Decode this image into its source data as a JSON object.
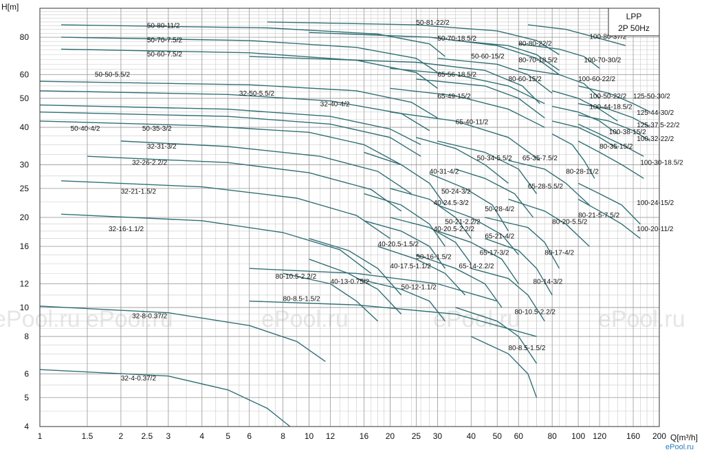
{
  "chart_data": {
    "type": "line",
    "title": "LPP",
    "subtitle": "2P 50Hz",
    "xlabel": "Q[m³/h]",
    "ylabel": "H[m]",
    "xscale": "log",
    "yscale": "log",
    "xlim": [
      1,
      200
    ],
    "ylim": [
      4,
      100
    ],
    "x_ticks": [
      "1",
      "1.5",
      "2",
      "2.5",
      "3",
      "4",
      "5",
      "6",
      "8",
      "10",
      "12",
      "16",
      "20",
      "25",
      "30",
      "40",
      "50",
      "60",
      "80",
      "100",
      "120",
      "160",
      "200"
    ],
    "y_ticks": [
      "4",
      "5",
      "6",
      "8",
      "10",
      "12",
      "16",
      "20",
      "25",
      "30",
      "40",
      "50",
      "60",
      "80"
    ],
    "watermark": "ePool.ru",
    "logo": "ePool.ru",
    "series": [
      {
        "name": "32-4-0.37/2",
        "x": [
          1,
          3,
          5,
          7,
          8.5
        ],
        "y": [
          6.2,
          5.9,
          5.3,
          4.6,
          4
        ]
      },
      {
        "name": "32-8-0.37/2",
        "x": [
          1,
          3,
          6,
          9,
          11.5
        ],
        "y": [
          10.1,
          9.6,
          8.7,
          7.7,
          6.6
        ]
      },
      {
        "name": "32-16-1.1/2",
        "x": [
          1.2,
          4,
          8,
          13,
          17
        ],
        "y": [
          20.5,
          19.5,
          17.8,
          15.6,
          13
        ]
      },
      {
        "name": "32-21-1.5/2",
        "x": [
          1.2,
          4,
          9,
          15,
          20
        ],
        "y": [
          26.5,
          25.3,
          23.2,
          20.3,
          17
        ]
      },
      {
        "name": "32-26-2.2/2",
        "x": [
          1.5,
          5,
          10,
          17,
          22
        ],
        "y": [
          32,
          30.5,
          28.2,
          24.8,
          21
        ]
      },
      {
        "name": "32-31-3/2",
        "x": [
          2,
          5,
          11,
          18,
          24
        ],
        "y": [
          36,
          34.5,
          32,
          28.5,
          24
        ]
      },
      {
        "name": "50-35-3/2",
        "x": [
          1,
          4,
          10,
          16,
          22
        ],
        "y": [
          42,
          40.5,
          38.5,
          35,
          30
        ]
      },
      {
        "name": "50-40-4/2",
        "x": [
          1,
          5,
          12,
          20,
          26
        ],
        "y": [
          45,
          43.5,
          41,
          37,
          32
        ]
      },
      {
        "name": "32-40-4/2",
        "x": [
          1,
          5,
          12,
          20,
          26
        ],
        "y": [
          47.5,
          46,
          43.5,
          39.5,
          35
        ]
      },
      {
        "name": "32-50-5.5/2",
        "x": [
          1,
          5,
          12,
          22,
          28
        ],
        "y": [
          53,
          51.5,
          49,
          44.5,
          39
        ]
      },
      {
        "name": "50-50-5.5/2",
        "x": [
          1,
          6,
          15,
          24,
          30
        ],
        "y": [
          57,
          55.5,
          53,
          48.5,
          43
        ]
      },
      {
        "name": "50-60-7.5/2",
        "x": [
          1.2,
          6,
          15,
          25,
          30
        ],
        "y": [
          73,
          71,
          67,
          61,
          54
        ]
      },
      {
        "name": "50-70-7.5/2",
        "x": [
          1.2,
          6,
          15,
          25,
          30
        ],
        "y": [
          80,
          78,
          74,
          68,
          61
        ]
      },
      {
        "name": "50-80-11/2",
        "x": [
          1.2,
          7,
          18,
          28,
          32
        ],
        "y": [
          88,
          86,
          82,
          76,
          69
        ]
      },
      {
        "name": "50-81-22/2",
        "x": [
          7,
          25,
          50,
          70,
          85
        ],
        "y": [
          90,
          88,
          84,
          78,
          70
        ]
      },
      {
        "name": "50-70-18.5/2",
        "x": [
          10,
          28,
          50,
          70,
          85
        ],
        "y": [
          83,
          80,
          75,
          68,
          60
        ]
      },
      {
        "name": "50-60-15/2",
        "x": [
          6,
          25,
          45,
          62,
          72
        ],
        "y": [
          69,
          66,
          62,
          55,
          48
        ]
      },
      {
        "name": "65-56-18.5/2",
        "x": [
          20,
          35,
          55,
          75
        ],
        "y": [
          63,
          60,
          55,
          48
        ]
      },
      {
        "name": "65-49-15/2",
        "x": [
          20,
          35,
          55,
          75
        ],
        "y": [
          54,
          51,
          46,
          40
        ]
      },
      {
        "name": "65-40-11/2",
        "x": [
          20,
          35,
          55,
          72
        ],
        "y": [
          45,
          42,
          37,
          31
        ]
      },
      {
        "name": "50-34-5.5/2",
        "x": [
          25,
          35,
          45,
          55
        ],
        "y": [
          37,
          34,
          30,
          26
        ]
      },
      {
        "name": "65-35-7.5/2",
        "x": [
          30,
          45,
          60,
          70
        ],
        "y": [
          36,
          33,
          29,
          24
        ]
      },
      {
        "name": "40-31-4/2",
        "x": [
          16,
          22,
          28,
          32
        ],
        "y": [
          33,
          30,
          26,
          22
        ]
      },
      {
        "name": "65-28-5.5/2",
        "x": [
          35,
          45,
          58,
          68
        ],
        "y": [
          29,
          27,
          24,
          20
        ]
      },
      {
        "name": "50-24-3/2",
        "x": [
          20,
          28,
          35,
          40
        ],
        "y": [
          25,
          23,
          20,
          17
        ]
      },
      {
        "name": "40-24.5-3/2",
        "x": [
          16,
          22,
          28,
          32
        ],
        "y": [
          24,
          22,
          19,
          16
        ]
      },
      {
        "name": "50-28-4/2",
        "x": [
          28,
          38,
          48,
          55
        ],
        "y": [
          28,
          25,
          22,
          18
        ]
      },
      {
        "name": "50-21-2.2/2",
        "x": [
          20,
          28,
          35,
          40
        ],
        "y": [
          20,
          18.5,
          16.5,
          14
        ]
      },
      {
        "name": "40-20.5-2.2/2",
        "x": [
          16,
          22,
          28,
          32
        ],
        "y": [
          19.5,
          18,
          16,
          13.5
        ]
      },
      {
        "name": "65-21-4/2",
        "x": [
          30,
          40,
          52,
          60
        ],
        "y": [
          22,
          20,
          17.5,
          15
        ]
      },
      {
        "name": "65-17-3/2",
        "x": [
          30,
          40,
          52,
          60
        ],
        "y": [
          18,
          16.5,
          14.5,
          12
        ]
      },
      {
        "name": "40-20.5-1.5/2",
        "x": [
          10,
          14,
          18,
          22
        ],
        "y": [
          17,
          15.5,
          13.5,
          11
        ]
      },
      {
        "name": "50-16-1.5/2",
        "x": [
          18,
          25,
          32,
          38
        ],
        "y": [
          16,
          14.5,
          13,
          11
        ]
      },
      {
        "name": "65-14-2.2/2",
        "x": [
          25,
          35,
          45,
          52
        ],
        "y": [
          15,
          13.5,
          12,
          10
        ]
      },
      {
        "name": "40-17.5-1.1/2",
        "x": [
          10,
          14,
          18,
          22
        ],
        "y": [
          14.5,
          13,
          11.5,
          9.5
        ]
      },
      {
        "name": "40-13-0.75/2",
        "x": [
          8,
          12,
          15,
          18
        ],
        "y": [
          13,
          12,
          10.5,
          9
        ]
      },
      {
        "name": "80-10.5-2.2/2",
        "x": [
          6,
          15,
          30,
          50
        ],
        "y": [
          13.5,
          13,
          12,
          10.5
        ]
      },
      {
        "name": "50-12-1.1/2",
        "x": [
          15,
          22,
          28,
          32
        ],
        "y": [
          12.5,
          11.5,
          10.5,
          9
        ]
      },
      {
        "name": "80-8.5-1.5/2",
        "x": [
          6,
          15,
          35,
          70
        ],
        "y": [
          10.5,
          10.2,
          9.5,
          8
        ]
      },
      {
        "name": "80-10.5-2.2/2",
        "x": [
          35,
          50,
          60,
          70
        ],
        "y": [
          10,
          9,
          8,
          6.5
        ]
      },
      {
        "name": "80-8.5-1.5/2",
        "x": [
          40,
          55,
          65,
          70
        ],
        "y": [
          8,
          7,
          6,
          5
        ]
      },
      {
        "name": "80-14-3/2",
        "x": [
          40,
          55,
          65,
          75
        ],
        "y": [
          13.5,
          12.5,
          11,
          9
        ]
      },
      {
        "name": "80-17-4/2",
        "x": [
          45,
          60,
          70,
          80
        ],
        "y": [
          17,
          15.5,
          13.5,
          11
        ]
      },
      {
        "name": "80-20-5.5/2",
        "x": [
          45,
          65,
          75,
          85
        ],
        "y": [
          20,
          18.5,
          16.5,
          13.5
        ]
      },
      {
        "name": "80-21-5-7.5/2",
        "x": [
          55,
          75,
          90,
          110
        ],
        "y": [
          23,
          21,
          19,
          16
        ]
      },
      {
        "name": "80-28-11/2",
        "x": [
          55,
          75,
          90,
          110
        ],
        "y": [
          31,
          29,
          26,
          22
        ]
      },
      {
        "name": "80-35-15/2",
        "x": [
          80,
          95,
          105,
          115
        ],
        "y": [
          38,
          35,
          31,
          27
        ]
      },
      {
        "name": "80-60-15/2",
        "x": [
          25,
          45,
          60,
          75
        ],
        "y": [
          58,
          55,
          50,
          43
        ]
      },
      {
        "name": "80-70-18.5/2",
        "x": [
          30,
          50,
          65,
          80
        ],
        "y": [
          68,
          65,
          60,
          52
        ]
      },
      {
        "name": "80-80-22/2",
        "x": [
          35,
          55,
          70,
          85
        ],
        "y": [
          78,
          75,
          70,
          62
        ]
      },
      {
        "name": "100-80-37/2",
        "x": [
          65,
          90,
          110,
          150
        ],
        "y": [
          88,
          85,
          81,
          75
        ]
      },
      {
        "name": "100-70-30/2",
        "x": [
          60,
          85,
          105,
          120
        ],
        "y": [
          76,
          73,
          69,
          63
        ]
      },
      {
        "name": "100-60-22/2",
        "x": [
          60,
          85,
          105,
          120
        ],
        "y": [
          63,
          60,
          56,
          50
        ]
      },
      {
        "name": "100-50-22/2",
        "x": [
          80,
          100,
          120,
          140
        ],
        "y": [
          53,
          50,
          46,
          42
        ]
      },
      {
        "name": "100-44-18.5/2",
        "x": [
          80,
          100,
          120,
          140
        ],
        "y": [
          47,
          45,
          42,
          38
        ]
      },
      {
        "name": "100-38-15/2",
        "x": [
          80,
          100,
          120,
          140
        ],
        "y": [
          42,
          40,
          37,
          34
        ]
      },
      {
        "name": "100-32-22/2",
        "x": [
          100,
          120,
          145,
          175
        ],
        "y": [
          41,
          38,
          35,
          32
        ]
      },
      {
        "name": "100-30-18.5/2",
        "x": [
          100,
          120,
          145,
          175
        ],
        "y": [
          36,
          33,
          30,
          27
        ]
      },
      {
        "name": "100-24-15/2",
        "x": [
          100,
          120,
          145,
          170
        ],
        "y": [
          26,
          24,
          22,
          19
        ]
      },
      {
        "name": "100-20-11/2",
        "x": [
          100,
          120,
          145,
          170
        ],
        "y": [
          23,
          21,
          19,
          17
        ]
      },
      {
        "name": "125-50-30/2",
        "x": [
          100,
          130,
          160,
          185
        ],
        "y": [
          55,
          52,
          48,
          45
        ]
      },
      {
        "name": "125-44-30/2",
        "x": [
          100,
          130,
          160,
          185
        ],
        "y": [
          48,
          46,
          43,
          40
        ]
      },
      {
        "name": "125-37.5-22/2",
        "x": [
          100,
          130,
          160,
          185
        ],
        "y": [
          44,
          42,
          39,
          36
        ]
      }
    ],
    "labels": [
      {
        "text": "50-81-22/2",
        "x": 25,
        "y": 88
      },
      {
        "text": "50-80-11/2",
        "x": 2.5,
        "y": 86
      },
      {
        "text": "50-70-7.5/2",
        "x": 2.5,
        "y": 77
      },
      {
        "text": "50-70-18.5/2",
        "x": 30,
        "y": 78
      },
      {
        "text": "50-60-7.5/2",
        "x": 2.5,
        "y": 69
      },
      {
        "text": "80-80-22/2",
        "x": 60,
        "y": 75
      },
      {
        "text": "100-80-37/2",
        "x": 110,
        "y": 79
      },
      {
        "text": "50-60-15/2",
        "x": 40,
        "y": 68
      },
      {
        "text": "80-70-18.5/2",
        "x": 60,
        "y": 66
      },
      {
        "text": "100-70-30/2",
        "x": 105,
        "y": 66
      },
      {
        "text": "50-50-5.5/2",
        "x": 1.6,
        "y": 59
      },
      {
        "text": "65-56-18.5/2",
        "x": 30,
        "y": 59
      },
      {
        "text": "80-60-15/2",
        "x": 55,
        "y": 57
      },
      {
        "text": "100-60-22/2",
        "x": 100,
        "y": 57
      },
      {
        "text": "32-50-5.5/2",
        "x": 5.5,
        "y": 51
      },
      {
        "text": "65-49-15/2",
        "x": 30,
        "y": 50
      },
      {
        "text": "100-50-22/2",
        "x": 110,
        "y": 50
      },
      {
        "text": "125-50-30/2",
        "x": 160,
        "y": 50
      },
      {
        "text": "32-40-4/2",
        "x": 11,
        "y": 47
      },
      {
        "text": "100-44-18.5/2",
        "x": 110,
        "y": 46
      },
      {
        "text": "125-44-30/2",
        "x": 165,
        "y": 44
      },
      {
        "text": "65-40-11/2",
        "x": 35,
        "y": 41
      },
      {
        "text": "125-37.5-22/2",
        "x": 165,
        "y": 40
      },
      {
        "text": "50-40-4/2",
        "x": 1.3,
        "y": 39
      },
      {
        "text": "50-35-3/2",
        "x": 2.4,
        "y": 39
      },
      {
        "text": "100-38-15/2",
        "x": 130,
        "y": 38
      },
      {
        "text": "100-32-22/2",
        "x": 165,
        "y": 36
      },
      {
        "text": "80-35-15/2",
        "x": 120,
        "y": 34
      },
      {
        "text": "32-31-3/2",
        "x": 2.5,
        "y": 34
      },
      {
        "text": "50-34-5.5/2",
        "x": 42,
        "y": 31
      },
      {
        "text": "100-30-18.5/2",
        "x": 170,
        "y": 30
      },
      {
        "text": "65-35-7.5/2",
        "x": 62,
        "y": 31
      },
      {
        "text": "32-26-2.2/2",
        "x": 2.2,
        "y": 30
      },
      {
        "text": "40-31-4/2",
        "x": 28,
        "y": 28
      },
      {
        "text": "80-28-11/2",
        "x": 90,
        "y": 28
      },
      {
        "text": "65-28-5.5/2",
        "x": 65,
        "y": 25
      },
      {
        "text": "32-21-1.5/2",
        "x": 2,
        "y": 24
      },
      {
        "text": "50-24-3/2",
        "x": 31,
        "y": 24
      },
      {
        "text": "40-24.5-3/2",
        "x": 29,
        "y": 22
      },
      {
        "text": "100-24-15/2",
        "x": 165,
        "y": 22
      },
      {
        "text": "50-28-4/2",
        "x": 45,
        "y": 21
      },
      {
        "text": "80-21-5-7.5/2",
        "x": 100,
        "y": 20
      },
      {
        "text": "50-21-2.2/2",
        "x": 32,
        "y": 19
      },
      {
        "text": "80-20-5.5/2",
        "x": 80,
        "y": 19
      },
      {
        "text": "40-20.5-2.2/2",
        "x": 29,
        "y": 18
      },
      {
        "text": "32-16-1.1/2",
        "x": 1.8,
        "y": 18
      },
      {
        "text": "65-21-4/2",
        "x": 45,
        "y": 17
      },
      {
        "text": "100-20-11/2",
        "x": 165,
        "y": 18
      },
      {
        "text": "40-20.5-1.5/2",
        "x": 18,
        "y": 16
      },
      {
        "text": "80-17-4/2",
        "x": 75,
        "y": 15
      },
      {
        "text": "65-17-3/2",
        "x": 43,
        "y": 15
      },
      {
        "text": "50-16-1.5/2",
        "x": 25,
        "y": 14.5
      },
      {
        "text": "40-17.5-1.1/2",
        "x": 20,
        "y": 13.5
      },
      {
        "text": "65-14-2.2/2",
        "x": 36,
        "y": 13.5
      },
      {
        "text": "80-10.5-2.2/2",
        "x": 7.5,
        "y": 12.5
      },
      {
        "text": "40-13-0.75/2",
        "x": 12,
        "y": 12
      },
      {
        "text": "80-14-3/2",
        "x": 68,
        "y": 12
      },
      {
        "text": "50-12-1.1/2",
        "x": 22,
        "y": 11.5
      },
      {
        "text": "80-8.5-1.5/2",
        "x": 8,
        "y": 10.5
      },
      {
        "text": "80-10.5-2.2/2",
        "x": 58,
        "y": 9.5
      },
      {
        "text": "32-8-0.37/2",
        "x": 2.2,
        "y": 9.2
      },
      {
        "text": "80-8.5-1.5/2",
        "x": 55,
        "y": 7.2
      },
      {
        "text": "32-4-0.37/2",
        "x": 2,
        "y": 5.7
      }
    ]
  }
}
